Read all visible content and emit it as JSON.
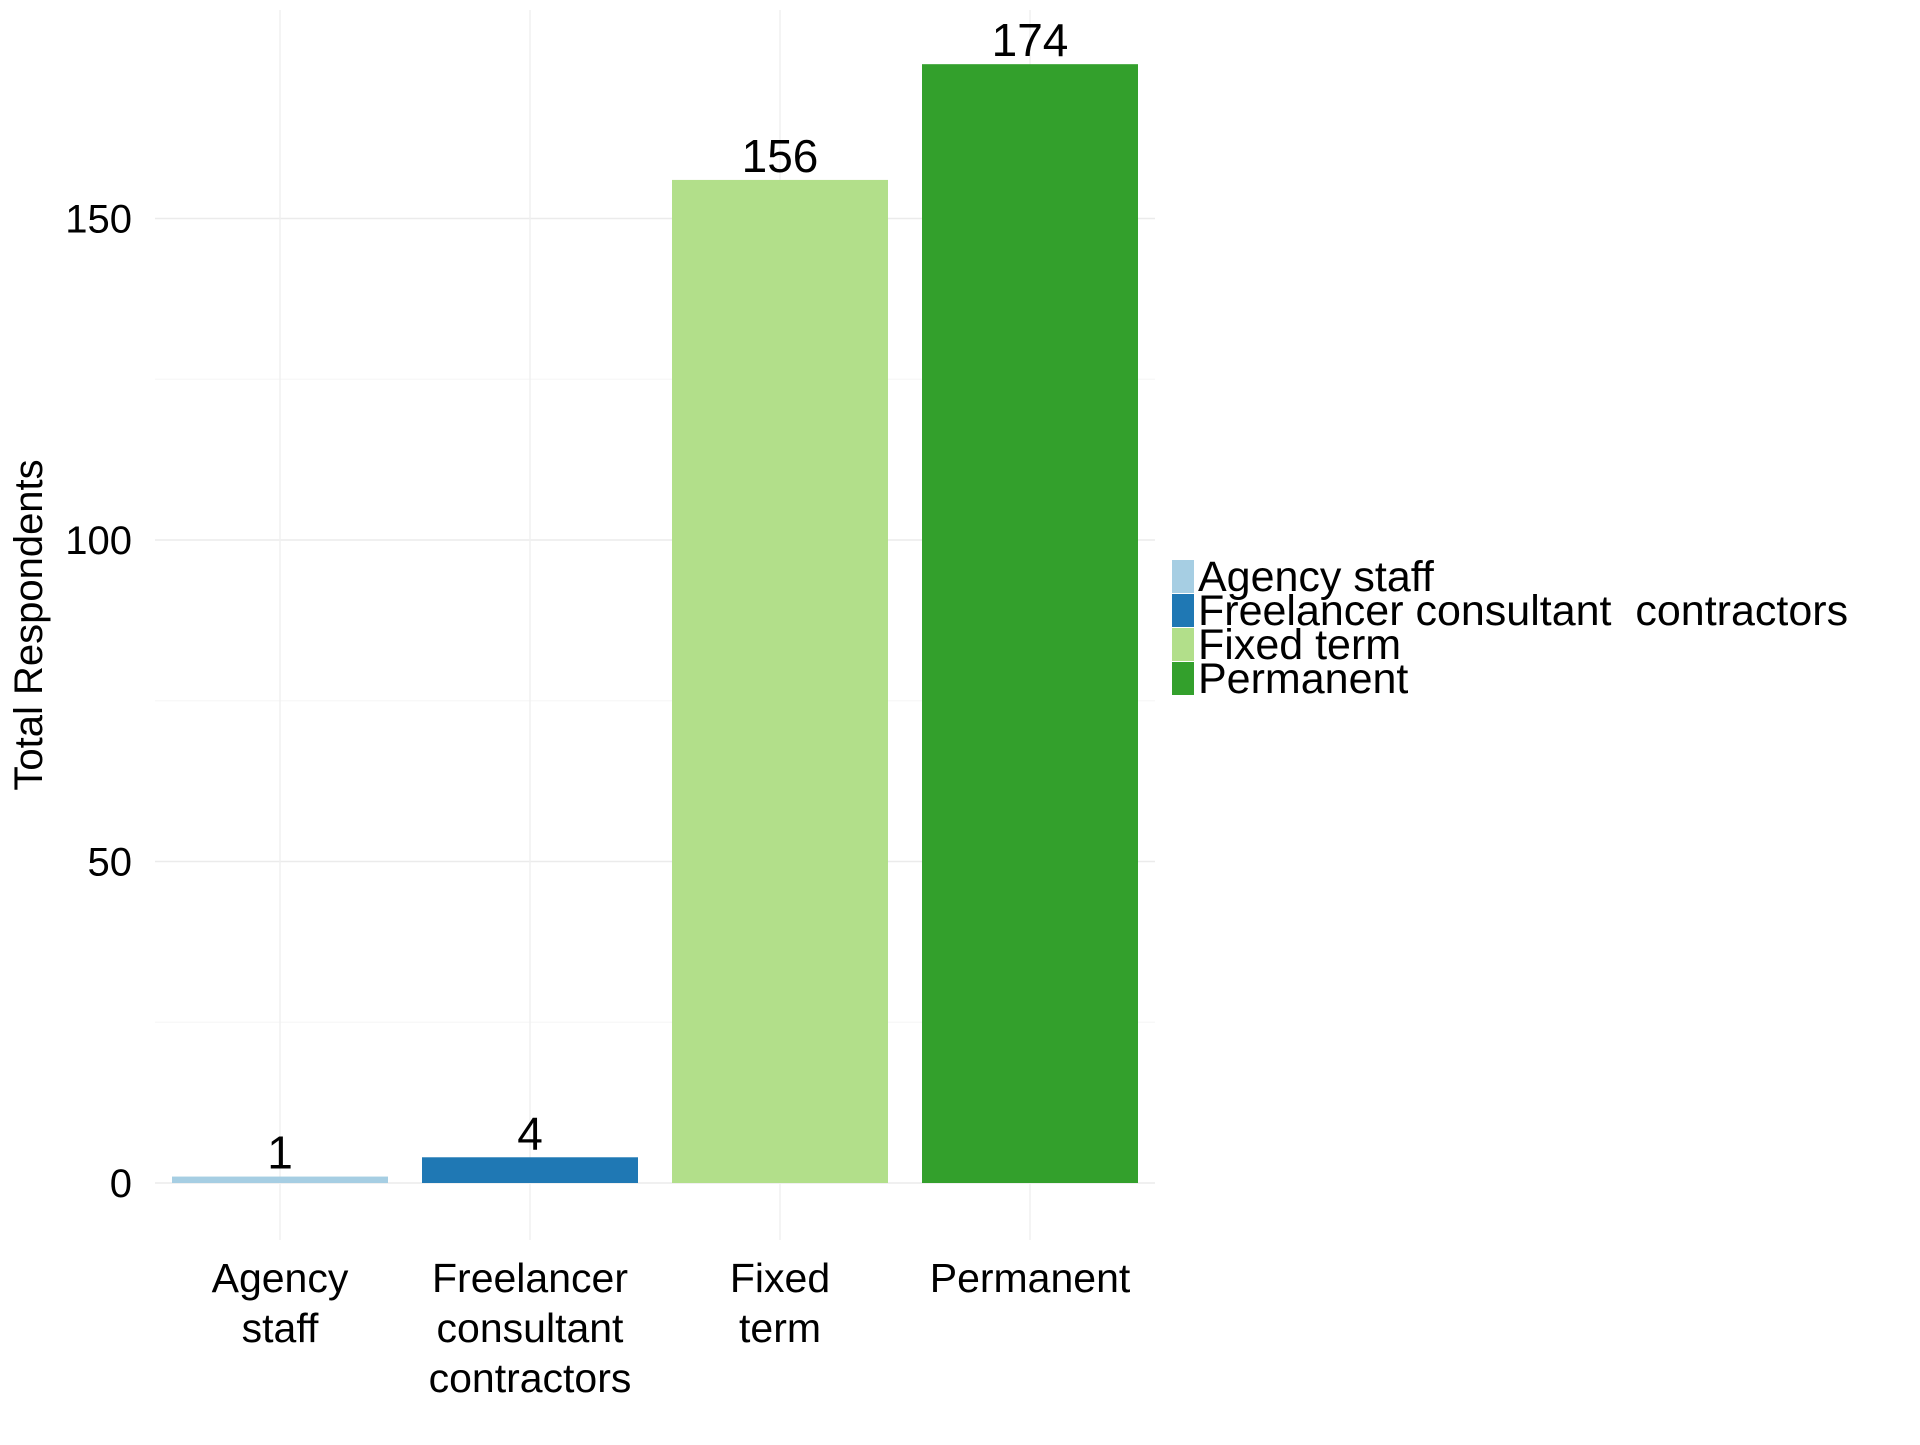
{
  "chart_data": {
    "type": "bar",
    "title": "",
    "xlabel": "",
    "ylabel": "Total Respondents",
    "categories": [
      "Agency staff",
      "Freelancer consultant contractors",
      "Fixed term",
      "Permanent"
    ],
    "category_tick_labels": [
      [
        "Agency",
        "staff"
      ],
      [
        "Freelancer",
        "consultant",
        "contractors"
      ],
      [
        "Fixed",
        "term"
      ],
      [
        "Permanent"
      ]
    ],
    "values": [
      1,
      4,
      156,
      174
    ],
    "data_labels": [
      "1",
      "4",
      "156",
      "174"
    ],
    "colors": [
      "#a6cee3",
      "#1f78b4",
      "#b2df8a",
      "#33a02c"
    ],
    "ylim": [
      0,
      174
    ],
    "yticks": [
      0,
      50,
      100,
      150
    ],
    "grid": true,
    "legend": {
      "position": "right",
      "entries": [
        "Agency staff",
        "Freelancer consultant  contractors",
        "Fixed term",
        "Permanent"
      ]
    }
  }
}
